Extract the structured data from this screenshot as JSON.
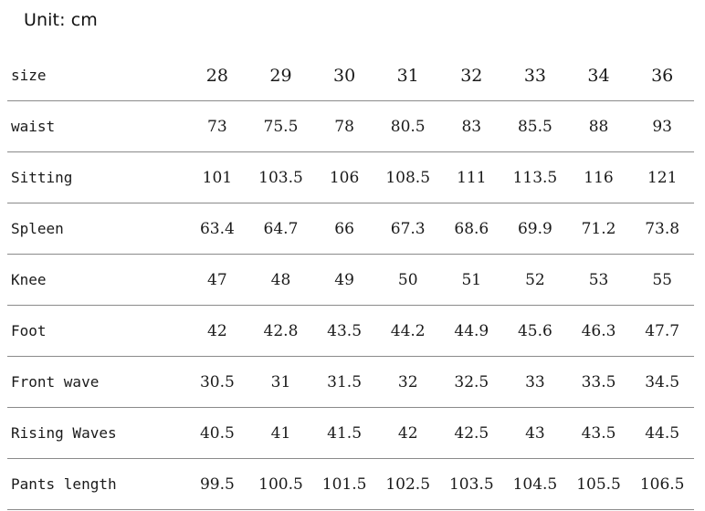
{
  "unit_label": "Unit: cm",
  "table": {
    "header": {
      "label": "size",
      "sizes": [
        "28",
        "29",
        "30",
        "31",
        "32",
        "33",
        "34",
        "36"
      ]
    },
    "rows": [
      {
        "label": "waist",
        "values": [
          "73",
          "75.5",
          "78",
          "80.5",
          "83",
          "85.5",
          "88",
          "93"
        ]
      },
      {
        "label": "Sitting",
        "values": [
          "101",
          "103.5",
          "106",
          "108.5",
          "111",
          "113.5",
          "116",
          "121"
        ]
      },
      {
        "label": "Spleen",
        "values": [
          "63.4",
          "64.7",
          "66",
          "67.3",
          "68.6",
          "69.9",
          "71.2",
          "73.8"
        ]
      },
      {
        "label": "Knee",
        "values": [
          "47",
          "48",
          "49",
          "50",
          "51",
          "52",
          "53",
          "55"
        ]
      },
      {
        "label": "Foot",
        "values": [
          "42",
          "42.8",
          "43.5",
          "44.2",
          "44.9",
          "45.6",
          "46.3",
          "47.7"
        ]
      },
      {
        "label": "Front wave",
        "values": [
          "30.5",
          "31",
          "31.5",
          "32",
          "32.5",
          "33",
          "33.5",
          "34.5"
        ]
      },
      {
        "label": "Rising Waves",
        "values": [
          "40.5",
          "41",
          "41.5",
          "42",
          "42.5",
          "43",
          "43.5",
          "44.5"
        ]
      },
      {
        "label": "Pants length",
        "values": [
          "99.5",
          "100.5",
          "101.5",
          "102.5",
          "103.5",
          "104.5",
          "105.5",
          "106.5"
        ]
      }
    ]
  }
}
